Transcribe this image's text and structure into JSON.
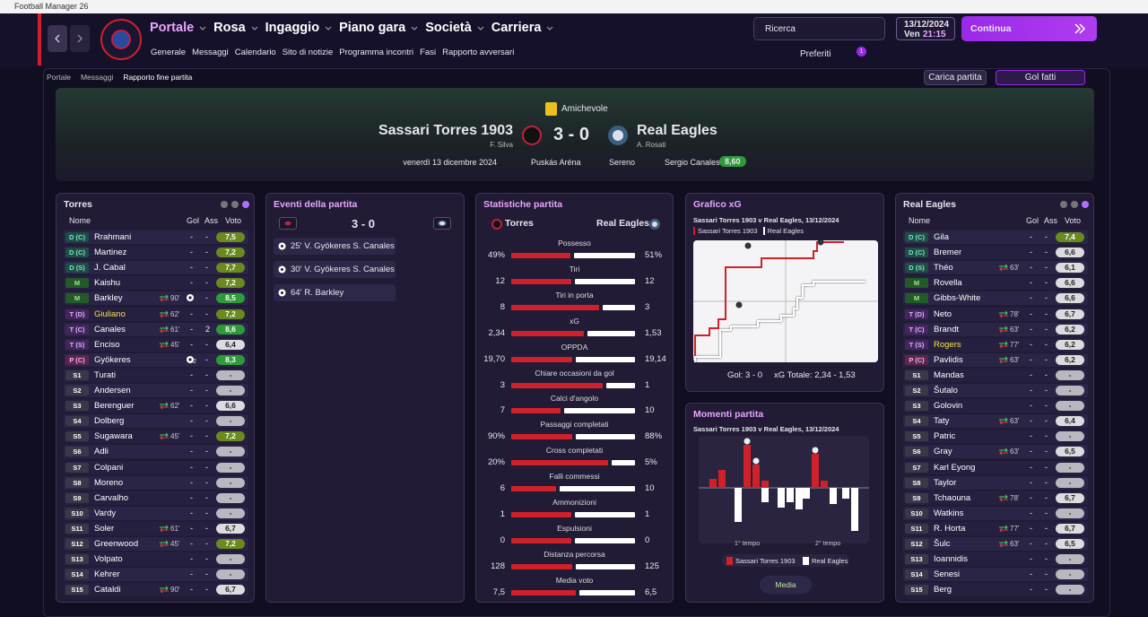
{
  "window_title": "Football Manager 26",
  "nav": {
    "main": [
      "Portale",
      "Rosa",
      "Ingaggio",
      "Piano gara",
      "Società",
      "Carriera"
    ],
    "sub": [
      "Generale",
      "Messaggi",
      "Calendario",
      "Sito di notizie",
      "Programma incontri",
      "Fasi",
      "Rapporto avversari"
    ],
    "search": "Ricerca",
    "date": "13/12/2024",
    "day": "Ven",
    "time": "21:15",
    "continue": "Continua",
    "favorites": "Preferiti",
    "notification_count": "1"
  },
  "breadcrumb": [
    "Portale",
    "Messaggi",
    "Rapporto fine partita"
  ],
  "actions": {
    "load_match": "Carica partita",
    "highlights": "Gol fatti"
  },
  "match": {
    "competition": "Amichevole",
    "home": "Sassari Torres 1903",
    "home_manager": "F. Silva",
    "score": "3 - 0",
    "away": "Real Eagles",
    "away_manager": "A. Rosati",
    "date": "venerdì 13 dicembre 2024",
    "stadium": "Puskás Aréna",
    "weather": "Sereno",
    "player_of_match": "Sergio Canales",
    "player_of_match_rating": "8,60"
  },
  "home_lineup": {
    "title": "Torres",
    "columns": [
      "Nome",
      "Gol",
      "Ass",
      "Voto"
    ],
    "players": [
      {
        "pos": "D (C)",
        "name": "Rrahmani",
        "goals": "-",
        "assists": "-",
        "rating": "7,5"
      },
      {
        "pos": "D (C)",
        "name": "Martinez",
        "goals": "-",
        "assists": "-",
        "rating": "7,2"
      },
      {
        "pos": "D (S)",
        "name": "J. Cabal",
        "goals": "-",
        "assists": "-",
        "rating": "7,7"
      },
      {
        "pos": "M",
        "name": "Kaishu",
        "goals": "-",
        "assists": "-",
        "rating": "7,2"
      },
      {
        "pos": "M",
        "name": "Barkley",
        "sub": "90'",
        "goals": 1,
        "assists": "-",
        "rating": "8,5"
      },
      {
        "pos": "T (D)",
        "name": "Giuliano",
        "sub": "62'",
        "goals": "-",
        "assists": "-",
        "rating": "7,2",
        "highlight": true
      },
      {
        "pos": "T (C)",
        "name": "Canales",
        "sub": "61'",
        "goals": "-",
        "assists": "2",
        "rating": "8,6"
      },
      {
        "pos": "T (S)",
        "name": "Enciso",
        "sub": "45'",
        "goals": "-",
        "assists": "-",
        "rating": "6,4"
      },
      {
        "pos": "P (C)",
        "name": "Gyökeres",
        "goals": 2,
        "assists": "-",
        "rating": "8,3"
      },
      {
        "pos": "S1",
        "name": "Turati",
        "goals": "-",
        "assists": "-",
        "rating": "-"
      },
      {
        "pos": "S2",
        "name": "Andersen",
        "goals": "-",
        "assists": "-",
        "rating": "-"
      },
      {
        "pos": "S3",
        "name": "Berenguer",
        "sub": "62'",
        "goals": "-",
        "assists": "-",
        "rating": "6,6"
      },
      {
        "pos": "S4",
        "name": "Dolberg",
        "goals": "-",
        "assists": "-",
        "rating": "-"
      },
      {
        "pos": "S5",
        "name": "Sugawara",
        "sub": "45'",
        "goals": "-",
        "assists": "-",
        "rating": "7,2"
      },
      {
        "pos": "S6",
        "name": "Adli",
        "goals": "-",
        "assists": "-",
        "rating": "-"
      },
      {
        "pos": "S7",
        "name": "Colpani",
        "goals": "-",
        "assists": "-",
        "rating": "-"
      },
      {
        "pos": "S8",
        "name": "Moreno",
        "goals": "-",
        "assists": "-",
        "rating": "-"
      },
      {
        "pos": "S9",
        "name": "Carvalho",
        "goals": "-",
        "assists": "-",
        "rating": "-"
      },
      {
        "pos": "S10",
        "name": "Vardy",
        "goals": "-",
        "assists": "-",
        "rating": "-"
      },
      {
        "pos": "S11",
        "name": "Soler",
        "sub": "61'",
        "goals": "-",
        "assists": "-",
        "rating": "6,7"
      },
      {
        "pos": "S12",
        "name": "Greenwood",
        "sub": "45'",
        "goals": "-",
        "assists": "-",
        "rating": "7,2"
      },
      {
        "pos": "S13",
        "name": "Volpato",
        "goals": "-",
        "assists": "-",
        "rating": "-"
      },
      {
        "pos": "S14",
        "name": "Kehrer",
        "goals": "-",
        "assists": "-",
        "rating": "-"
      },
      {
        "pos": "S15",
        "name": "Cataldi",
        "sub": "90'",
        "goals": "-",
        "assists": "-",
        "rating": "6,7"
      }
    ]
  },
  "away_lineup": {
    "title": "Real Eagles",
    "columns": [
      "Nome",
      "Gol",
      "Ass",
      "Voto"
    ],
    "players": [
      {
        "pos": "D (C)",
        "name": "Gila",
        "goals": "-",
        "assists": "-",
        "rating": "7,4"
      },
      {
        "pos": "D (C)",
        "name": "Bremer",
        "goals": "-",
        "assists": "-",
        "rating": "6,6"
      },
      {
        "pos": "D (S)",
        "name": "Théo",
        "sub": "63'",
        "goals": "-",
        "assists": "-",
        "rating": "6,1"
      },
      {
        "pos": "M",
        "name": "Rovella",
        "goals": "-",
        "assists": "-",
        "rating": "6,6"
      },
      {
        "pos": "M",
        "name": "Gibbs-White",
        "goals": "-",
        "assists": "-",
        "rating": "6,6"
      },
      {
        "pos": "T (D)",
        "name": "Neto",
        "sub": "78'",
        "goals": "-",
        "assists": "-",
        "rating": "6,7"
      },
      {
        "pos": "T (C)",
        "name": "Brandt",
        "sub": "63'",
        "goals": "-",
        "assists": "-",
        "rating": "6,2"
      },
      {
        "pos": "T (S)",
        "name": "Rogers",
        "sub": "77'",
        "goals": "-",
        "assists": "-",
        "rating": "6,2",
        "highlight": true
      },
      {
        "pos": "P (C)",
        "name": "Pavlidis",
        "sub": "63'",
        "goals": "-",
        "assists": "-",
        "rating": "6,2"
      },
      {
        "pos": "S1",
        "name": "Mandas",
        "goals": "-",
        "assists": "-",
        "rating": "-"
      },
      {
        "pos": "S2",
        "name": "Šutalo",
        "goals": "-",
        "assists": "-",
        "rating": "-"
      },
      {
        "pos": "S3",
        "name": "Golovin",
        "goals": "-",
        "assists": "-",
        "rating": "-"
      },
      {
        "pos": "S4",
        "name": "Taty",
        "sub": "63'",
        "goals": "-",
        "assists": "-",
        "rating": "6,4"
      },
      {
        "pos": "S5",
        "name": "Patric",
        "goals": "-",
        "assists": "-",
        "rating": "-"
      },
      {
        "pos": "S6",
        "name": "Gray",
        "sub": "63'",
        "goals": "-",
        "assists": "-",
        "rating": "6,5"
      },
      {
        "pos": "S7",
        "name": "Karl Eyong",
        "goals": "-",
        "assists": "-",
        "rating": "-"
      },
      {
        "pos": "S8",
        "name": "Taylor",
        "goals": "-",
        "assists": "-",
        "rating": "-"
      },
      {
        "pos": "S9",
        "name": "Tchaouna",
        "sub": "78'",
        "goals": "-",
        "assists": "-",
        "rating": "6,7"
      },
      {
        "pos": "S10",
        "name": "Watkins",
        "goals": "-",
        "assists": "-",
        "rating": "-"
      },
      {
        "pos": "S11",
        "name": "R. Horta",
        "sub": "77'",
        "goals": "-",
        "assists": "-",
        "rating": "6,7"
      },
      {
        "pos": "S12",
        "name": "Šulc",
        "sub": "63'",
        "goals": "-",
        "assists": "-",
        "rating": "6,5"
      },
      {
        "pos": "S13",
        "name": "Ioannidis",
        "goals": "-",
        "assists": "-",
        "rating": "-"
      },
      {
        "pos": "S14",
        "name": "Senesi",
        "goals": "-",
        "assists": "-",
        "rating": "-"
      },
      {
        "pos": "S15",
        "name": "Berg",
        "goals": "-",
        "assists": "-",
        "rating": "-"
      }
    ]
  },
  "events": {
    "title": "Eventi della partita",
    "score": "3 - 0",
    "items": [
      {
        "minute": "25'",
        "text": "V. Gyökeres S. Canales"
      },
      {
        "minute": "30'",
        "text": "V. Gyökeres S. Canales"
      },
      {
        "minute": "64'",
        "text": "R. Barkley"
      }
    ]
  },
  "stats": {
    "title": "Statistiche partita",
    "home": "Torres",
    "away": "Real Eagles",
    "rows": [
      {
        "label": "Possesso",
        "home": {
          "value": 49,
          "label": "49%"
        },
        "away": {
          "value": 51,
          "label": "51%"
        }
      },
      {
        "label": "Tiri",
        "home": 12,
        "away": 12
      },
      {
        "label": "Tiri in porta",
        "home": 8,
        "away": 3
      },
      {
        "label": "xG",
        "home": {
          "value": 2.34,
          "label": "2,34"
        },
        "away": {
          "value": 1.53,
          "label": "1,53"
        }
      },
      {
        "label": "OPPDA",
        "home": {
          "value": 19.7,
          "label": "19,70"
        },
        "away": {
          "value": 19.14,
          "label": "19,14"
        }
      },
      {
        "label": "Chiare occasioni da gol",
        "home": 3,
        "away": 1
      },
      {
        "label": "Calci d'angolo",
        "home": 7,
        "away": 10
      },
      {
        "label": "Passaggi completati",
        "home": {
          "value": 90,
          "label": "90%"
        },
        "away": {
          "value": 88,
          "label": "88%"
        }
      },
      {
        "label": "Cross completati",
        "home": {
          "value": 20,
          "label": "20%"
        },
        "away": {
          "value": 5,
          "label": "5%"
        }
      },
      {
        "label": "Falli commessi",
        "home": 6,
        "away": 10
      },
      {
        "label": "Ammonizioni",
        "home": 1,
        "away": 1
      },
      {
        "label": "Espulsioni",
        "home": 0,
        "away": 0
      },
      {
        "label": "Distanza percorsa",
        "home": 128,
        "away": 125
      },
      {
        "label": "Media voto",
        "home": {
          "value": 7.5,
          "label": "7,5"
        },
        "away": {
          "value": 6.5,
          "label": "6,5"
        }
      }
    ]
  },
  "xg_chart": {
    "title": "Grafico xG",
    "subtitle": "Sassari Torres 1903 v Real Eagles, 13/12/2024",
    "legend": [
      "Sassari Torres 1903",
      "Real Eagles"
    ],
    "goals": "Gol: 3 - 0",
    "xg_total": "xG Totale: 2,34 - 1,53"
  },
  "momentum": {
    "title": "Momenti partita",
    "subtitle": "Sassari Torres 1903 v Real Eagles, 13/12/2024",
    "halves": [
      "1° tempo",
      "2° tempo"
    ],
    "legend": [
      "Sassari Torres 1903",
      "Real Eagles"
    ],
    "button": "Media"
  }
}
